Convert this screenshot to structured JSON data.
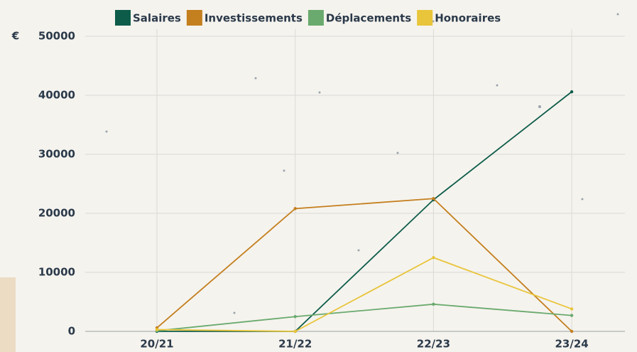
{
  "chart_data": {
    "type": "line",
    "y_unit": "€",
    "categories": [
      "20/21",
      "21/22",
      "22/23",
      "23/24"
    ],
    "series": [
      {
        "name": "Salaires",
        "color": "#0d5c4a",
        "values": [
          0,
          0,
          22300,
          40600
        ]
      },
      {
        "name": "Investissements",
        "color": "#c47f1e",
        "values": [
          600,
          20800,
          22500,
          0
        ]
      },
      {
        "name": "Déplacements",
        "color": "#6aaa6e",
        "values": [
          100,
          2500,
          4600,
          2700
        ]
      },
      {
        "name": "Honoraires",
        "color": "#e8c53a",
        "values": [
          300,
          0,
          12500,
          3800
        ]
      }
    ],
    "ylim": [
      0,
      50000
    ],
    "yticks": [
      0,
      10000,
      20000,
      30000,
      40000,
      50000
    ],
    "grid": true
  }
}
